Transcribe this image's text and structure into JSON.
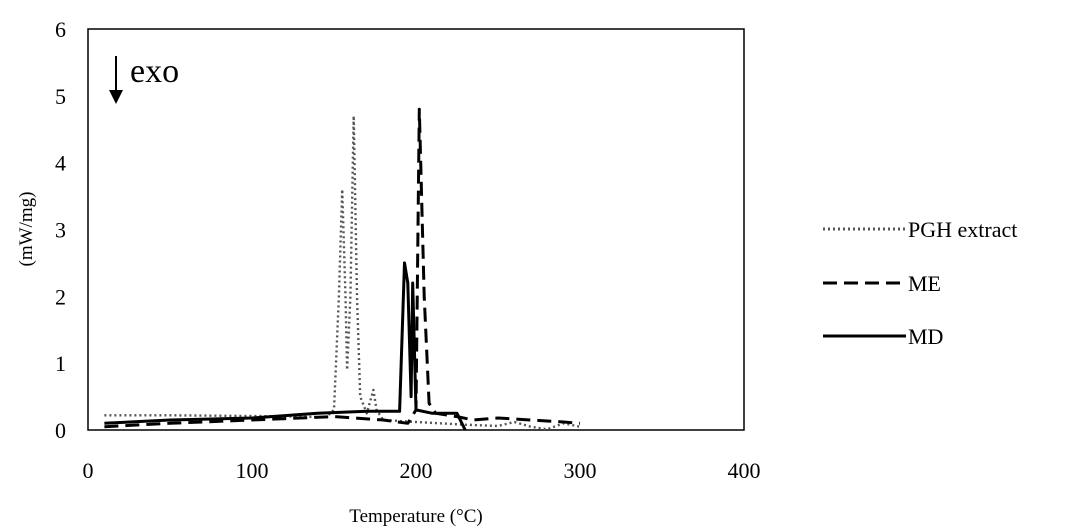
{
  "chart_data": {
    "type": "line",
    "xlabel": "Temperature (°C)",
    "ylabel": "(mW/mg)",
    "xlim": [
      0,
      400
    ],
    "ylim": [
      0,
      6
    ],
    "xticks": [
      "0",
      "100",
      "200",
      "300",
      "400"
    ],
    "yticks": [
      "0",
      "1",
      "2",
      "3",
      "4",
      "5",
      "6"
    ],
    "grid": false,
    "legend_position": "right",
    "annotation": "exo",
    "series": [
      {
        "name": "PGH extract",
        "style": "dotted",
        "color": "#555555",
        "points": [
          [
            10,
            0.22
          ],
          [
            50,
            0.22
          ],
          [
            100,
            0.21
          ],
          [
            130,
            0.2
          ],
          [
            145,
            0.19
          ],
          [
            150,
            0.3
          ],
          [
            153,
            2.0
          ],
          [
            155,
            3.6
          ],
          [
            157,
            2.0
          ],
          [
            158,
            0.9
          ],
          [
            160,
            2.0
          ],
          [
            162,
            4.7
          ],
          [
            164,
            2.0
          ],
          [
            166,
            0.5
          ],
          [
            170,
            0.25
          ],
          [
            174,
            0.6
          ],
          [
            176,
            0.3
          ],
          [
            180,
            0.15
          ],
          [
            200,
            0.12
          ],
          [
            230,
            0.08
          ],
          [
            250,
            0.06
          ],
          [
            260,
            0.12
          ],
          [
            270,
            0.05
          ],
          [
            280,
            0.01
          ],
          [
            290,
            0.1
          ],
          [
            300,
            0.05
          ]
        ]
      },
      {
        "name": "ME",
        "style": "dashed",
        "color": "#000000",
        "points": [
          [
            10,
            0.05
          ],
          [
            50,
            0.1
          ],
          [
            100,
            0.15
          ],
          [
            150,
            0.2
          ],
          [
            180,
            0.15
          ],
          [
            195,
            0.1
          ],
          [
            200,
            0.3
          ],
          [
            202,
            4.8
          ],
          [
            205,
            2.0
          ],
          [
            208,
            0.4
          ],
          [
            212,
            0.25
          ],
          [
            225,
            0.2
          ],
          [
            235,
            0.15
          ],
          [
            250,
            0.18
          ],
          [
            270,
            0.15
          ],
          [
            290,
            0.12
          ],
          [
            300,
            0.1
          ]
        ]
      },
      {
        "name": "MD",
        "style": "solid",
        "color": "#000000",
        "points": [
          [
            10,
            0.1
          ],
          [
            50,
            0.15
          ],
          [
            100,
            0.18
          ],
          [
            140,
            0.25
          ],
          [
            170,
            0.28
          ],
          [
            190,
            0.28
          ],
          [
            193,
            2.5
          ],
          [
            195,
            2.2
          ],
          [
            197,
            0.5
          ],
          [
            198,
            2.2
          ],
          [
            200,
            0.3
          ],
          [
            210,
            0.25
          ],
          [
            225,
            0.25
          ],
          [
            230,
            0.0
          ]
        ]
      }
    ]
  }
}
